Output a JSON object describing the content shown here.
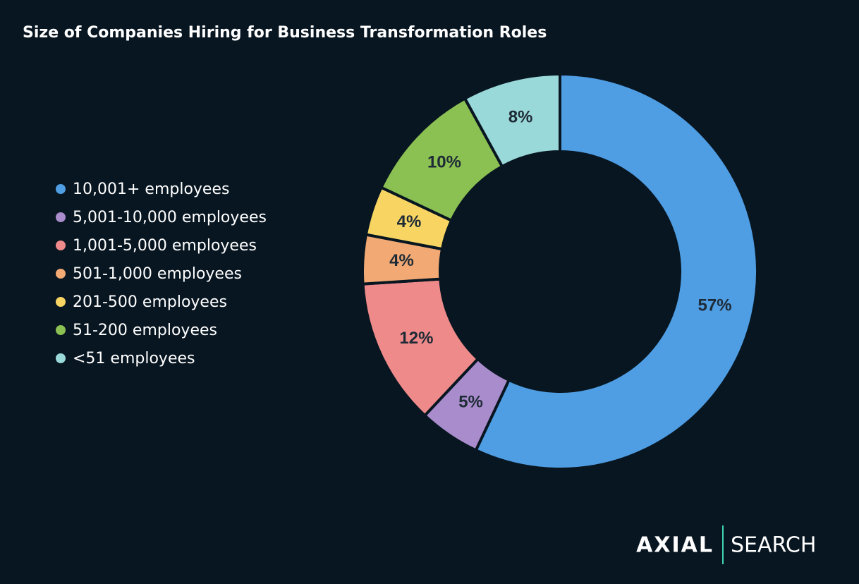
{
  "chart_data": {
    "type": "donut",
    "title": "Size of Companies Hiring for Business Transformation Roles",
    "categories": [
      "10,001+ employees",
      "5,001-10,000 employees",
      "1,001-5,000 employees",
      "501-1,000 employees",
      "201-500 employees",
      "51-200 employees",
      "<51 employees"
    ],
    "values": [
      57,
      5,
      12,
      4,
      4,
      10,
      8
    ],
    "value_labels": [
      "57%",
      "5%",
      "12%",
      "4%",
      "4%",
      "10%",
      "8%"
    ],
    "colors": [
      "#4f9de3",
      "#a98ccb",
      "#ef8a8a",
      "#f2a974",
      "#f8d562",
      "#8bc052",
      "#9ad9d9"
    ],
    "legend": "left"
  },
  "brand": {
    "name": "AXIAL",
    "product": "SEARCH"
  }
}
